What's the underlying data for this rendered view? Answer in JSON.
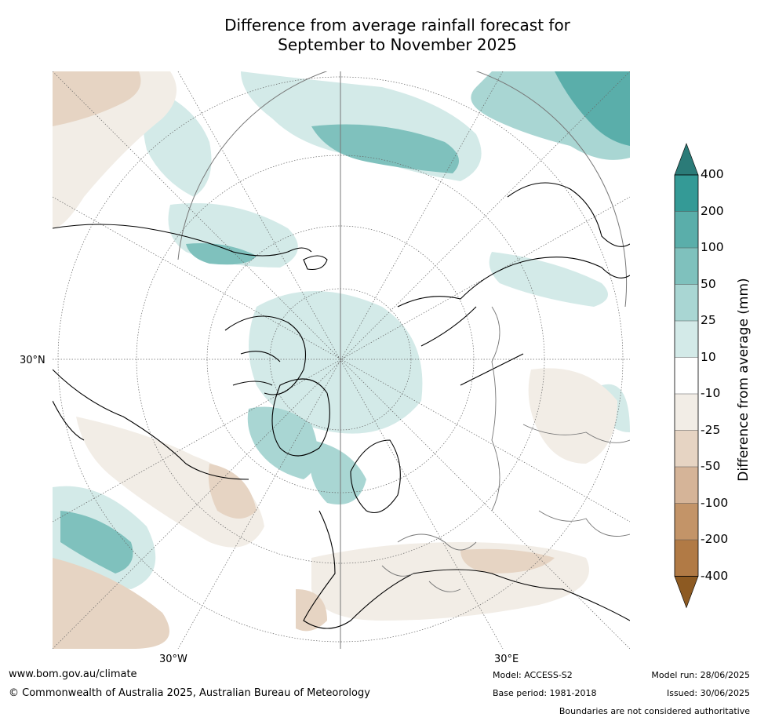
{
  "title": {
    "line1": "Difference from average rainfall forecast for",
    "line2": "September to November 2025"
  },
  "axis_labels": {
    "lat_30n": "30°N",
    "lon_30w": "30°W",
    "lon_30e": "30°E"
  },
  "colorbar": {
    "title": "Difference from average (mm)",
    "ticks": [
      "400",
      "200",
      "100",
      "50",
      "25",
      "10",
      "-10",
      "-25",
      "-50",
      "-100",
      "-200",
      "-400"
    ],
    "colors": {
      "wet_extreme": "#2b7b78",
      "wet_400": "#349a96",
      "wet_200": "#5aaeaa",
      "wet_100": "#7fc1bd",
      "wet_50": "#a9d6d3",
      "wet_25": "#d3eae8",
      "neutral": "#ffffff",
      "dry_10": "#f2ede6",
      "dry_25": "#e6d4c3",
      "dry_50": "#d5b498",
      "dry_100": "#c39468",
      "dry_200": "#b17a45",
      "dry_extreme": "#8d5a22"
    }
  },
  "footer": {
    "website": "www.bom.gov.au/climate",
    "copyright": "© Commonwealth of Australia 2025, Australian Bureau of Meteorology",
    "model": "Model: ACCESS-S2",
    "base_period": "Base period: 1981-2018",
    "model_run": "Model run: 28/06/2025",
    "issued": "Issued: 30/06/2025",
    "disclaimer": "Boundaries are not considered authoritative"
  }
}
